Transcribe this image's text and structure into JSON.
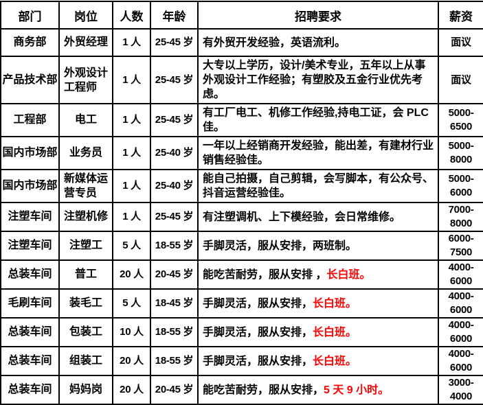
{
  "colors": {
    "text": "#000000",
    "highlight_red": "#ff0000",
    "border": "#000000",
    "background": "#ffffff"
  },
  "table": {
    "headers": {
      "department": "部门",
      "position": "岗位",
      "count": "人数",
      "age": "年龄",
      "requirement": "招聘要求",
      "salary": "薪资"
    },
    "rows": [
      {
        "department": "商务部",
        "position": "外贸经理",
        "wrap": false,
        "count": "1 人",
        "age": "25-45 岁",
        "requirement": [
          {
            "text": "有外贸开发经验，英语流利。",
            "red": false
          }
        ],
        "salary": "面议"
      },
      {
        "department": "产品技术部",
        "position": "外观设计工程师",
        "wrap": true,
        "count": "1 人",
        "age": "25-45 岁",
        "requirement": [
          {
            "text": "大专以上学历，设计/美术专业，五年以上从事外观设计工作经验；有塑胶及五金行业优先考虑。",
            "red": false
          }
        ],
        "salary": "面议"
      },
      {
        "department": "工程部",
        "position": "电工",
        "wrap": false,
        "count": "1 人",
        "age": "25-45 岁",
        "requirement": [
          {
            "text": "有工厂电工、机修工作经验,持电工证，会 PLC 佳。",
            "red": false
          }
        ],
        "salary": "5000-6500"
      },
      {
        "department": "国内市场部",
        "position": "业务员",
        "wrap": false,
        "count": "1 人",
        "age": "25-40 岁",
        "requirement": [
          {
            "text": "一年以上经销商开发经验，能出差，有建材行业销售经验佳。",
            "red": false
          }
        ],
        "salary": "5000-8000"
      },
      {
        "department": "国内市场部",
        "position": "新媒体运营专员",
        "wrap": true,
        "count": "1 人",
        "age": "25-40 岁",
        "requirement": [
          {
            "text": "能自己拍摄，自己剪辑，会写脚本，有公众号、抖音运营经验佳。",
            "red": false
          }
        ],
        "salary": "5000-6000"
      },
      {
        "department": "注塑车间",
        "position": "注塑机修",
        "wrap": false,
        "count": "1 人",
        "age": "25-45 岁",
        "requirement": [
          {
            "text": "有注塑调机、上下模经验，会日常维修。",
            "red": false
          }
        ],
        "salary": "7000-8000"
      },
      {
        "department": "注塑车间",
        "position": "注塑工",
        "wrap": false,
        "count": "5 人",
        "age": "18-55 岁",
        "requirement": [
          {
            "text": "手脚灵活，服从安排，两班制。",
            "red": false
          }
        ],
        "salary": "6000-7500"
      },
      {
        "department": "总装车间",
        "position": "普工",
        "wrap": false,
        "count": "20 人",
        "age": "20-45 岁",
        "requirement": [
          {
            "text": "能吃苦耐劳，服从安排 ，",
            "red": false
          },
          {
            "text": "长白班。",
            "red": true
          }
        ],
        "salary": "4000-6000"
      },
      {
        "department": "毛刷车间",
        "position": "装毛工",
        "wrap": false,
        "count": "5 人",
        "age": "18-45 岁",
        "requirement": [
          {
            "text": "手脚灵活，服从安排，",
            "red": false
          },
          {
            "text": "长白班。",
            "red": true
          }
        ],
        "salary": "4000-6000"
      },
      {
        "department": "总装车间",
        "position": "包装工",
        "wrap": false,
        "count": "10 人",
        "age": "18-55 岁",
        "requirement": [
          {
            "text": "手脚灵活，服从安排，",
            "red": false
          },
          {
            "text": "长白班。",
            "red": true
          }
        ],
        "salary": "4000-6000"
      },
      {
        "department": "总装车间",
        "position": "组装工",
        "wrap": false,
        "count": "20 人",
        "age": "18-55 岁",
        "requirement": [
          {
            "text": "手脚灵活，服从安排，",
            "red": false
          },
          {
            "text": "长白班。",
            "red": true
          }
        ],
        "salary": "4000-6000"
      },
      {
        "department": "总装车间",
        "position": "妈妈岗",
        "wrap": false,
        "count": "20 人",
        "age": "20-45 岁",
        "requirement": [
          {
            "text": "能吃苦耐劳，服从安排，",
            "red": false
          },
          {
            "text": "5 天 9 小时。",
            "red": true
          }
        ],
        "salary": "3000-4000"
      }
    ]
  }
}
